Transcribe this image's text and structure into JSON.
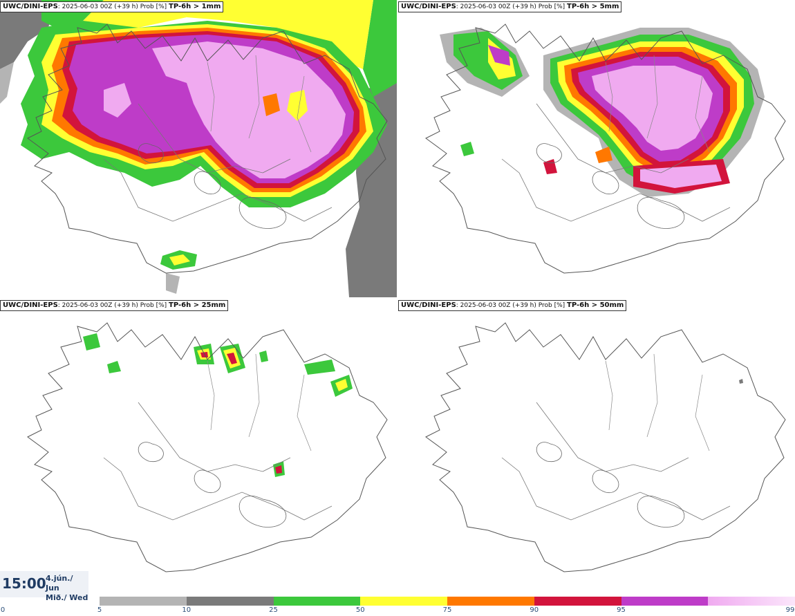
{
  "panels": [
    {
      "model": "UWC/DINI-EPS",
      "info": ": 2025-06-03 00Z (+39 h) Prob [%] ",
      "threshold": "TP-6h > 1mm"
    },
    {
      "model": "UWC/DINI-EPS",
      "info": ": 2025-06-03 00Z (+39 h) Prob [%] ",
      "threshold": "TP-6h > 5mm"
    },
    {
      "model": "UWC/DINI-EPS",
      "info": ": 2025-06-03 00Z (+39 h) Prob [%] ",
      "threshold": "TP-6h > 25mm"
    },
    {
      "model": "UWC/DINI-EPS",
      "info": ": 2025-06-03 00Z (+39 h) Prob [%] ",
      "threshold": "TP-6h > 50mm"
    }
  ],
  "valid_time": {
    "time": "15:00",
    "date_line1": "4.jún./ Jun",
    "date_line2": "Mið./ Wed"
  },
  "colorbar": {
    "ticks": [
      "0",
      "5",
      "10",
      "25",
      "50",
      "75",
      "90",
      "95",
      "99"
    ],
    "colors": [
      "#b4b4b4",
      "#7a7a7a",
      "#3cc83c",
      "#ffff32",
      "#ff7800",
      "#d2143c",
      "#be3cc8",
      "#f0aaf0"
    ]
  }
}
